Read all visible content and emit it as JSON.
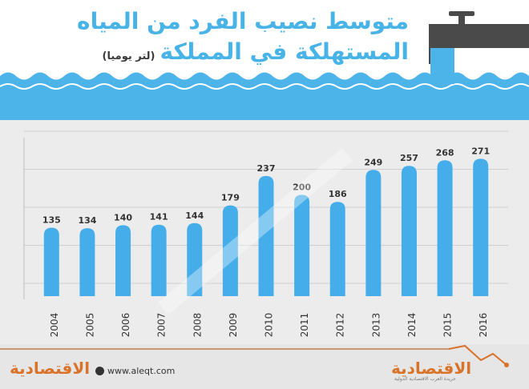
{
  "header": {
    "title_line1": "متوسط نصيب الفرد من المياه",
    "title_line2": "المستهلكة في المملكة",
    "unit": "(لتر يوميا)"
  },
  "footer": {
    "website": "www.aleqt.com",
    "logo_text": "الاقتصادية",
    "logo_subtitle": "جريدة العرب الاقتصادية الدولية"
  },
  "colors": {
    "bar": "#45aeea",
    "water": "#4db4ea",
    "title": "#48b3e6",
    "accent": "#d9732a",
    "chart_bg": "#ececec"
  },
  "chart_data": {
    "type": "bar",
    "categories": [
      "2004",
      "2005",
      "2006",
      "2007",
      "2008",
      "2009",
      "2010",
      "2011",
      "2012",
      "2013",
      "2014",
      "2015",
      "2016"
    ],
    "values": [
      135,
      134,
      140,
      141,
      144,
      179,
      237,
      200,
      186,
      249,
      257,
      268,
      271
    ],
    "title": "متوسط نصيب الفرد من المياه المستهلكة في المملكة",
    "ylabel": "(لتر يوميا)",
    "ylim": [
      0,
      300
    ],
    "grid": true,
    "data_labels": true
  }
}
